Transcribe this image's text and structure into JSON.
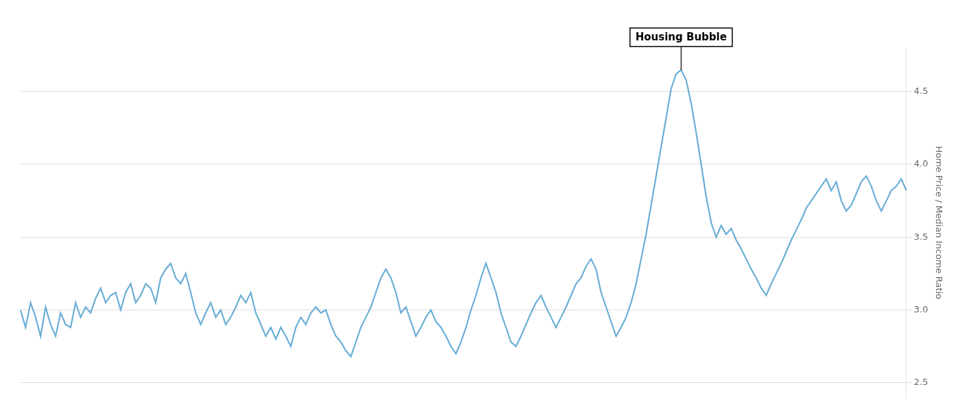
{
  "chart_data": {
    "type": "line",
    "ylabel": "Home Price / Median Income Ratio",
    "annotation": "Housing Bubble",
    "color": "#6aaed6",
    "ylim": [
      2.4,
      4.8
    ],
    "yticks": [
      2.5,
      {
        "value": 3,
        "label": "3.0"
      },
      3.5,
      {
        "value": 4,
        "label": "4.0"
      },
      4.5
    ],
    "grid": "y",
    "tick_labels": "y",
    "values": [
      3.0,
      2.88,
      3.05,
      2.95,
      2.82,
      3.02,
      2.9,
      2.82,
      2.98,
      2.9,
      2.88,
      3.05,
      2.95,
      3.02,
      2.98,
      3.08,
      3.15,
      3.05,
      3.1,
      3.12,
      3.0,
      3.12,
      3.18,
      3.05,
      3.1,
      3.18,
      3.15,
      3.05,
      3.22,
      3.28,
      3.32,
      3.22,
      3.18,
      3.25,
      3.12,
      2.98,
      2.9,
      2.98,
      3.05,
      2.95,
      3.0,
      2.9,
      2.95,
      3.02,
      3.1,
      3.05,
      3.12,
      2.98,
      2.9,
      2.82,
      2.88,
      2.8,
      2.88,
      2.82,
      2.75,
      2.88,
      2.95,
      2.9,
      2.98,
      3.02,
      2.98,
      3.0,
      2.9,
      2.82,
      2.78,
      2.72,
      2.68,
      2.78,
      2.88,
      2.95,
      3.02,
      3.12,
      3.22,
      3.28,
      3.22,
      3.12,
      2.98,
      3.02,
      2.92,
      2.82,
      2.88,
      2.95,
      3.0,
      2.92,
      2.88,
      2.82,
      2.75,
      2.7,
      2.78,
      2.88,
      3.0,
      3.1,
      3.22,
      3.32,
      3.22,
      3.12,
      2.98,
      2.88,
      2.78,
      2.75,
      2.82,
      2.9,
      2.98,
      3.05,
      3.1,
      3.02,
      2.95,
      2.88,
      2.95,
      3.02,
      3.1,
      3.18,
      3.22,
      3.3,
      3.35,
      3.28,
      3.12,
      3.02,
      2.92,
      2.82,
      2.88,
      2.95,
      3.05,
      3.18,
      3.35,
      3.52,
      3.72,
      3.92,
      4.12,
      4.32,
      4.52,
      4.62,
      4.65,
      4.58,
      4.42,
      4.22,
      4.0,
      3.78,
      3.6,
      3.5,
      3.58,
      3.52,
      3.56,
      3.48,
      3.42,
      3.35,
      3.28,
      3.22,
      3.15,
      3.1,
      3.18,
      3.25,
      3.32,
      3.4,
      3.48,
      3.55,
      3.62,
      3.7,
      3.75,
      3.8,
      3.85,
      3.9,
      3.82,
      3.88,
      3.75,
      3.68,
      3.72,
      3.8,
      3.88,
      3.92,
      3.85,
      3.75,
      3.68,
      3.75,
      3.82,
      3.85,
      3.9,
      3.82
    ]
  }
}
